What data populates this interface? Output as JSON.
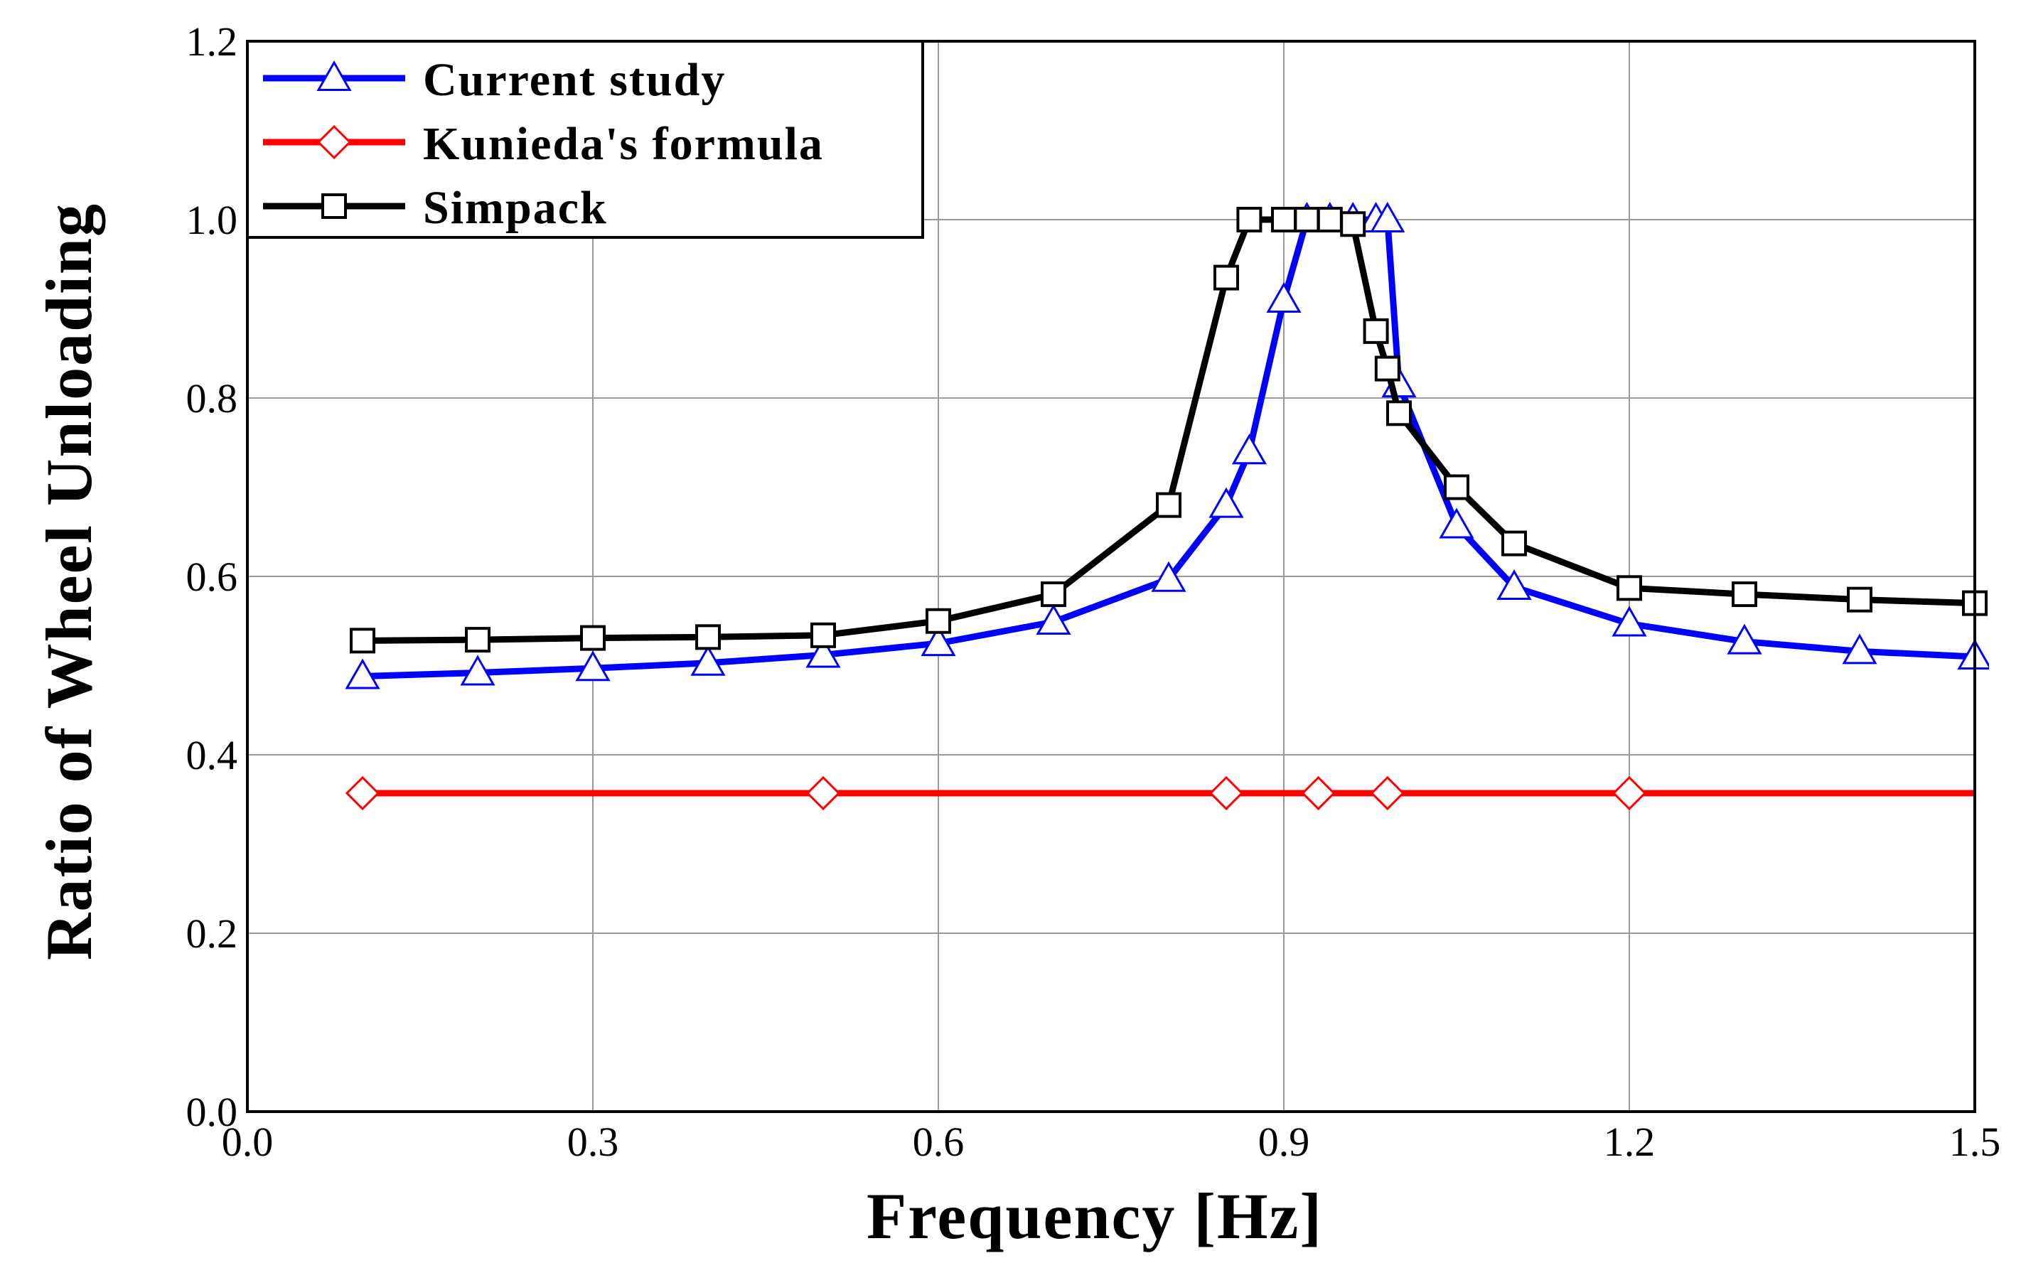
{
  "chart_data": {
    "type": "line",
    "title": "",
    "xlabel": "Frequency [Hz]",
    "ylabel": "Ratio of Wheel Unloading",
    "xlim": [
      0.0,
      1.5
    ],
    "ylim": [
      0.0,
      1.2
    ],
    "xticks": [
      0.0,
      0.3,
      0.6,
      0.9,
      1.2,
      1.5
    ],
    "yticks": [
      0.0,
      0.2,
      0.4,
      0.6,
      0.8,
      1.0,
      1.2
    ],
    "xtick_labels": [
      "0.0",
      "0.3",
      "0.6",
      "0.9",
      "1.2",
      "1.5"
    ],
    "ytick_labels": [
      "0.0",
      "0.2",
      "0.4",
      "0.6",
      "0.8",
      "1.0",
      "1.2"
    ],
    "grid": true,
    "legend_position": "top-left",
    "series": [
      {
        "name": "Current study",
        "color": "#0000ff",
        "marker": "triangle",
        "marker_color": "#0000ff",
        "x": [
          0.1,
          0.2,
          0.3,
          0.4,
          0.5,
          0.6,
          0.7,
          0.8,
          0.85,
          0.87,
          0.9,
          0.92,
          0.94,
          0.96,
          0.98,
          0.99,
          1.0,
          1.05,
          1.1,
          1.2,
          1.3,
          1.4,
          1.5
        ],
        "y": [
          0.488,
          0.492,
          0.497,
          0.503,
          0.512,
          0.525,
          0.549,
          0.597,
          0.68,
          0.74,
          0.91,
          1.0,
          1.0,
          1.0,
          1.0,
          1.0,
          0.815,
          0.657,
          0.588,
          0.547,
          0.527,
          0.516,
          0.51
        ]
      },
      {
        "name": "Kunieda's formula",
        "color": "#ff0000",
        "marker": "diamond",
        "marker_color": "#ff0000",
        "x": [
          0.1,
          0.5,
          0.85,
          0.93,
          0.99,
          1.2,
          1.5
        ],
        "y": [
          0.357,
          0.357,
          0.357,
          0.357,
          0.357,
          0.357,
          0.357
        ],
        "marker_x": [
          0.1,
          0.5,
          0.85,
          0.93,
          0.99,
          1.2
        ]
      },
      {
        "name": "Simpack",
        "color": "#000000",
        "marker": "square",
        "marker_color": "#000000",
        "x": [
          0.1,
          0.2,
          0.3,
          0.4,
          0.5,
          0.6,
          0.7,
          0.8,
          0.85,
          0.87,
          0.9,
          0.92,
          0.94,
          0.96,
          0.98,
          0.99,
          1.0,
          1.05,
          1.1,
          1.2,
          1.3,
          1.4,
          1.5
        ],
        "y": [
          0.528,
          0.529,
          0.531,
          0.532,
          0.534,
          0.55,
          0.58,
          0.68,
          0.935,
          1.0,
          1.0,
          1.0,
          1.0,
          0.995,
          0.875,
          0.833,
          0.783,
          0.7,
          0.637,
          0.587,
          0.58,
          0.574,
          0.57
        ]
      }
    ]
  }
}
